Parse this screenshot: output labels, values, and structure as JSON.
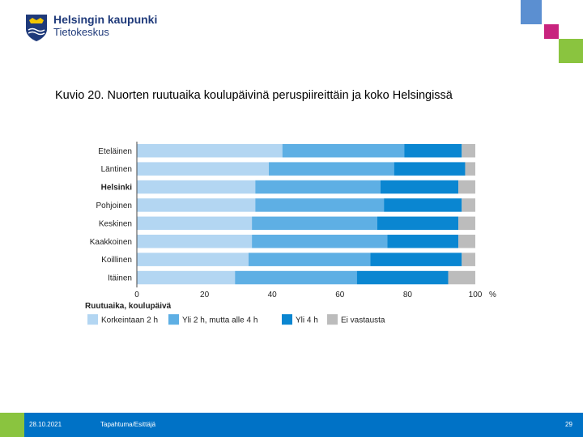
{
  "header": {
    "org_name": "Helsingin kaupunki",
    "unit_name": "Tietokeskus"
  },
  "title": "Kuvio 20. Nuorten ruutuaika koulupäivinä peruspiireittäin ja koko Helsingissä",
  "chart_data": {
    "type": "bar",
    "orientation": "horizontal",
    "stacked": true,
    "categories": [
      "Eteläinen",
      "Läntinen",
      "Helsinki",
      "Pohjoinen",
      "Keskinen",
      "Kaakkoinen",
      "Koillinen",
      "Itäinen"
    ],
    "bold_categories": [
      "Helsinki"
    ],
    "series": [
      {
        "name": "Korkeintaan 2 h",
        "color": "#b3d6f2",
        "values": [
          43,
          39,
          35,
          35,
          34,
          34,
          33,
          29
        ]
      },
      {
        "name": "Yli 2 h, mutta alle 4 h",
        "color": "#5eafe4",
        "values": [
          36,
          37,
          37,
          38,
          37,
          40,
          36,
          36
        ]
      },
      {
        "name": "Yli 4 h",
        "color": "#0a86d1",
        "values": [
          17,
          21,
          23,
          23,
          24,
          21,
          27,
          27
        ]
      },
      {
        "name": "Ei vastausta",
        "color": "#bcbcbc",
        "values": [
          4,
          3,
          5,
          4,
          5,
          5,
          4,
          8
        ]
      }
    ],
    "xlim": [
      0,
      100
    ],
    "xticks": [
      "0",
      "20",
      "40",
      "60",
      "80",
      "100"
    ],
    "unit_label": "%",
    "legend_title": "Ruutuaika, koulupäivä",
    "legend_position": "bottom"
  },
  "footer": {
    "date": "28.10.2021",
    "event": "Tapahtuma/Esittäjä",
    "page": "29"
  },
  "colors": {
    "footer_bg": "#0072c6",
    "footer_accent": "#8ac43f",
    "brand_dark": "#1f3a7a"
  }
}
